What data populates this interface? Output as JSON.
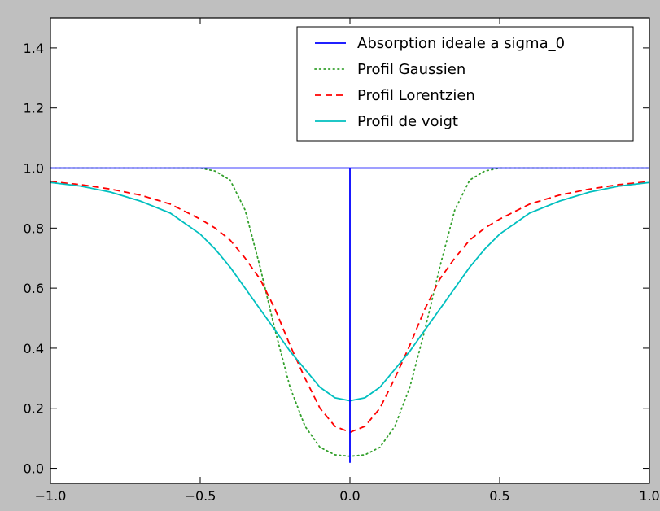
{
  "chart_data": {
    "type": "line",
    "title": "",
    "xlabel": "",
    "ylabel": "",
    "xlim": [
      -1.0,
      1.0
    ],
    "ylim": [
      -0.05,
      1.5
    ],
    "xticks": [
      {
        "value": -1.0,
        "label": "−1.0"
      },
      {
        "value": -0.5,
        "label": "−0.5"
      },
      {
        "value": 0.0,
        "label": "0.0"
      },
      {
        "value": 0.5,
        "label": "0.5"
      },
      {
        "value": 1.0,
        "label": "1.0"
      }
    ],
    "yticks": [
      {
        "value": 0.0,
        "label": "0.0"
      },
      {
        "value": 0.2,
        "label": "0.2"
      },
      {
        "value": 0.4,
        "label": "0.4"
      },
      {
        "value": 0.6,
        "label": "0.6"
      },
      {
        "value": 0.8,
        "label": "0.8"
      },
      {
        "value": 1.0,
        "label": "1.0"
      },
      {
        "value": 1.2,
        "label": "1.2"
      },
      {
        "value": 1.4,
        "label": "1.4"
      }
    ],
    "grid": false,
    "legend_position": "top-right",
    "series": [
      {
        "name": "Absorption ideale a sigma_0",
        "color": "#0000ff",
        "style": "solid",
        "points": [
          [
            -1.0,
            1.0
          ],
          [
            0.0,
            1.0
          ],
          [
            0.0,
            0.02
          ],
          [
            0.0,
            1.0
          ],
          [
            1.0,
            1.0
          ]
        ]
      },
      {
        "name": "Profil Gaussien",
        "color": "#33a02c",
        "style": "dotted",
        "points": [
          [
            -1.0,
            1.0
          ],
          [
            -0.6,
            1.0
          ],
          [
            -0.5,
            1.0
          ],
          [
            -0.45,
            0.99
          ],
          [
            -0.4,
            0.96
          ],
          [
            -0.35,
            0.86
          ],
          [
            -0.3,
            0.67
          ],
          [
            -0.25,
            0.46
          ],
          [
            -0.2,
            0.27
          ],
          [
            -0.15,
            0.14
          ],
          [
            -0.1,
            0.07
          ],
          [
            -0.05,
            0.045
          ],
          [
            0.0,
            0.04
          ],
          [
            0.05,
            0.045
          ],
          [
            0.1,
            0.07
          ],
          [
            0.15,
            0.14
          ],
          [
            0.2,
            0.27
          ],
          [
            0.25,
            0.46
          ],
          [
            0.3,
            0.67
          ],
          [
            0.35,
            0.86
          ],
          [
            0.4,
            0.96
          ],
          [
            0.45,
            0.99
          ],
          [
            0.5,
            1.0
          ],
          [
            0.6,
            1.0
          ],
          [
            1.0,
            1.0
          ]
        ]
      },
      {
        "name": "Profil Lorentzien",
        "color": "#ff0000",
        "style": "dashed",
        "points": [
          [
            -1.0,
            0.955
          ],
          [
            -0.9,
            0.945
          ],
          [
            -0.8,
            0.93
          ],
          [
            -0.7,
            0.91
          ],
          [
            -0.6,
            0.88
          ],
          [
            -0.5,
            0.83
          ],
          [
            -0.45,
            0.8
          ],
          [
            -0.4,
            0.76
          ],
          [
            -0.35,
            0.7
          ],
          [
            -0.3,
            0.63
          ],
          [
            -0.25,
            0.53
          ],
          [
            -0.2,
            0.41
          ],
          [
            -0.15,
            0.3
          ],
          [
            -0.1,
            0.2
          ],
          [
            -0.05,
            0.14
          ],
          [
            0.0,
            0.12
          ],
          [
            0.05,
            0.14
          ],
          [
            0.1,
            0.2
          ],
          [
            0.15,
            0.3
          ],
          [
            0.2,
            0.41
          ],
          [
            0.25,
            0.53
          ],
          [
            0.3,
            0.63
          ],
          [
            0.35,
            0.7
          ],
          [
            0.4,
            0.76
          ],
          [
            0.45,
            0.8
          ],
          [
            0.5,
            0.83
          ],
          [
            0.6,
            0.88
          ],
          [
            0.7,
            0.91
          ],
          [
            0.8,
            0.93
          ],
          [
            0.9,
            0.945
          ],
          [
            1.0,
            0.955
          ]
        ]
      },
      {
        "name": "Profil de voigt",
        "color": "#00bfbf",
        "style": "solid",
        "points": [
          [
            -1.0,
            0.952
          ],
          [
            -0.9,
            0.94
          ],
          [
            -0.8,
            0.92
          ],
          [
            -0.7,
            0.89
          ],
          [
            -0.6,
            0.85
          ],
          [
            -0.5,
            0.78
          ],
          [
            -0.45,
            0.73
          ],
          [
            -0.4,
            0.67
          ],
          [
            -0.35,
            0.6
          ],
          [
            -0.3,
            0.53
          ],
          [
            -0.25,
            0.46
          ],
          [
            -0.2,
            0.39
          ],
          [
            -0.15,
            0.33
          ],
          [
            -0.1,
            0.27
          ],
          [
            -0.05,
            0.235
          ],
          [
            0.0,
            0.225
          ],
          [
            0.05,
            0.235
          ],
          [
            0.1,
            0.27
          ],
          [
            0.15,
            0.33
          ],
          [
            0.2,
            0.39
          ],
          [
            0.25,
            0.46
          ],
          [
            0.3,
            0.53
          ],
          [
            0.35,
            0.6
          ],
          [
            0.4,
            0.67
          ],
          [
            0.45,
            0.73
          ],
          [
            0.5,
            0.78
          ],
          [
            0.6,
            0.85
          ],
          [
            0.7,
            0.89
          ],
          [
            0.8,
            0.92
          ],
          [
            0.9,
            0.94
          ],
          [
            1.0,
            0.952
          ]
        ]
      }
    ]
  }
}
